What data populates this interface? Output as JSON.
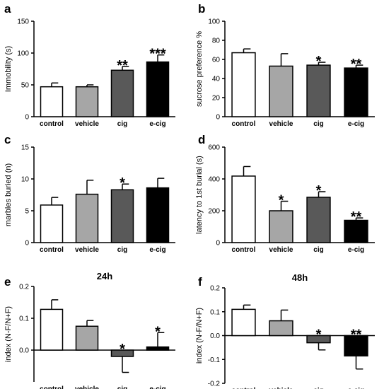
{
  "chart_data": [
    {
      "panel": "a",
      "type": "bar",
      "title": "",
      "ylabel": "Immobility (s)",
      "ylim": [
        0,
        150
      ],
      "yticks": [
        0,
        50,
        100,
        150
      ],
      "categories": [
        "control",
        "vehicle",
        "cig",
        "e-cig"
      ],
      "values": [
        47,
        47,
        73,
        86
      ],
      "errors": [
        6,
        3,
        6,
        11
      ],
      "significance": [
        "",
        "",
        "**",
        "***"
      ],
      "colors": [
        "#ffffff",
        "#a6a6a6",
        "#595959",
        "#000000"
      ]
    },
    {
      "panel": "b",
      "type": "bar",
      "title": "",
      "ylabel": "sucrose preference %",
      "ylim": [
        0,
        100
      ],
      "yticks": [
        0,
        20,
        40,
        60,
        80,
        100
      ],
      "categories": [
        "control",
        "vehicle",
        "cig",
        "e-cig"
      ],
      "values": [
        67,
        53,
        54,
        51
      ],
      "errors": [
        4,
        13,
        3,
        3
      ],
      "significance": [
        "",
        "",
        "*",
        "**"
      ],
      "colors": [
        "#ffffff",
        "#a6a6a6",
        "#595959",
        "#000000"
      ]
    },
    {
      "panel": "c",
      "type": "bar",
      "title": "",
      "ylabel": "marbles buried (n)",
      "ylim": [
        0,
        15
      ],
      "yticks": [
        0,
        5,
        10,
        15
      ],
      "categories": [
        "control",
        "vehicle",
        "cig",
        "e-cig"
      ],
      "values": [
        5.9,
        7.6,
        8.3,
        8.6
      ],
      "errors": [
        1.2,
        2.2,
        0.9,
        1.5
      ],
      "significance": [
        "",
        "",
        "*",
        ""
      ],
      "colors": [
        "#ffffff",
        "#a6a6a6",
        "#595959",
        "#000000"
      ]
    },
    {
      "panel": "d",
      "type": "bar",
      "title": "",
      "ylabel": "latency to 1st burial (s)",
      "ylim": [
        0,
        600
      ],
      "yticks": [
        0,
        200,
        400,
        600
      ],
      "categories": [
        "control",
        "vehicle",
        "cig",
        "e-cig"
      ],
      "values": [
        418,
        200,
        285,
        140
      ],
      "errors": [
        60,
        60,
        35,
        15
      ],
      "significance": [
        "",
        "*",
        "*",
        "**"
      ],
      "colors": [
        "#ffffff",
        "#a6a6a6",
        "#595959",
        "#000000"
      ]
    },
    {
      "panel": "e",
      "type": "bar",
      "title": "24h",
      "ylabel": "index (N-F/N+F)",
      "ylim": [
        -0.1,
        0.2
      ],
      "yticks": [
        0.0,
        0.1,
        0.2
      ],
      "categories": [
        "control",
        "vehicle",
        "cig",
        "e-cig"
      ],
      "values": [
        0.128,
        0.075,
        -0.02,
        0.01
      ],
      "errors": [
        0.03,
        0.018,
        0.05,
        0.045
      ],
      "significance": [
        "",
        "",
        "*",
        "*"
      ],
      "colors": [
        "#ffffff",
        "#a6a6a6",
        "#595959",
        "#000000"
      ]
    },
    {
      "panel": "f",
      "type": "bar",
      "title": "48h",
      "ylabel": "index (N-F/N+F)",
      "ylim": [
        -0.2,
        0.2
      ],
      "yticks": [
        -0.2,
        -0.1,
        0.0,
        0.1,
        0.2
      ],
      "categories": [
        "control",
        "vehicle",
        "cig",
        "e-cig"
      ],
      "values": [
        0.11,
        0.062,
        -0.03,
        -0.085
      ],
      "errors": [
        0.018,
        0.045,
        0.03,
        0.055
      ],
      "significance": [
        "",
        "",
        "*",
        "**"
      ],
      "colors": [
        "#ffffff",
        "#a6a6a6",
        "#595959",
        "#000000"
      ]
    }
  ]
}
